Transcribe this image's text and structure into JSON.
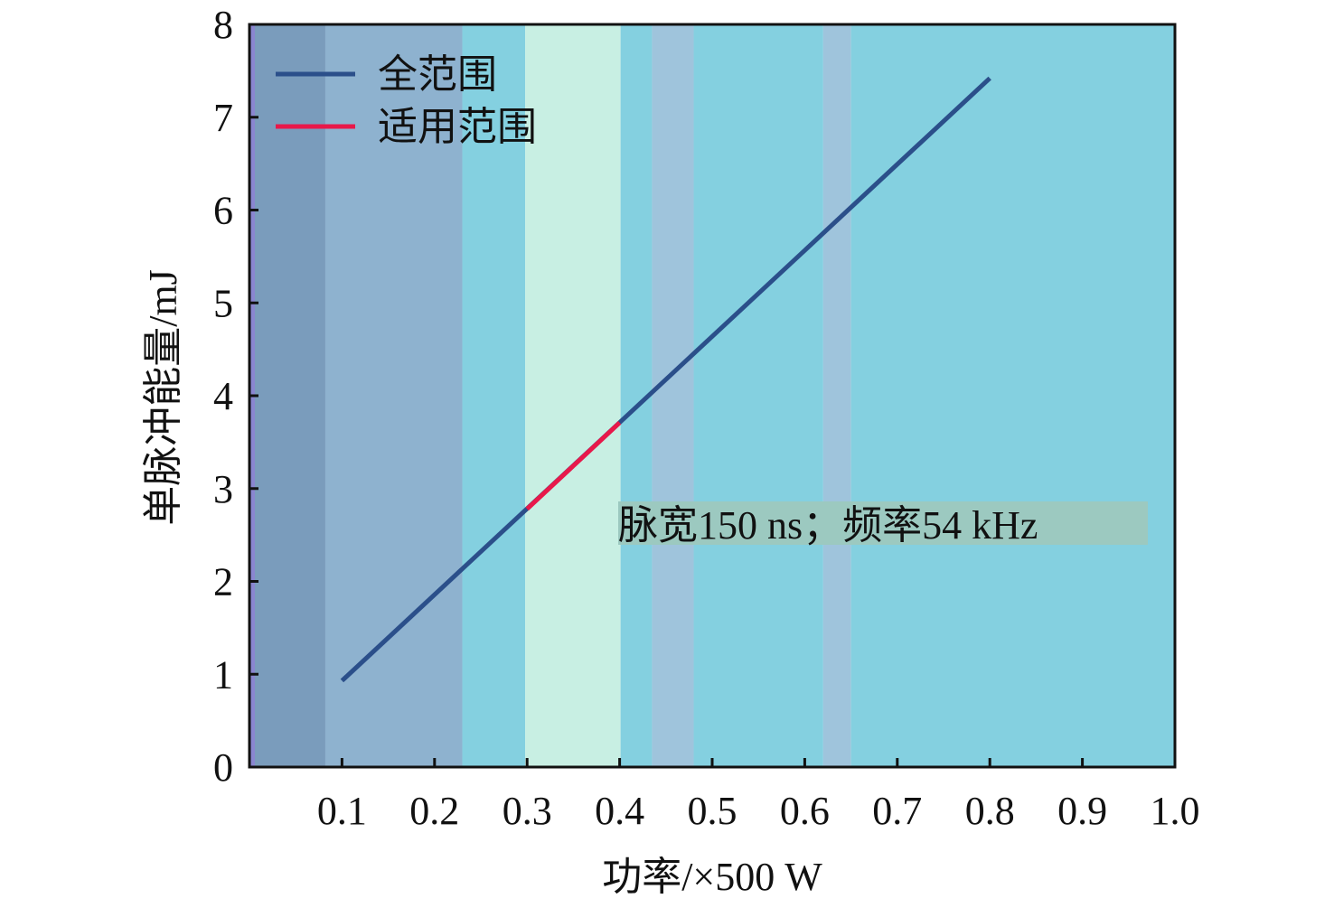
{
  "chart_data": {
    "type": "line",
    "xlabel": "功率/×500 W",
    "ylabel": "单脉冲能量/mJ",
    "xlim": [
      0,
      1.0
    ],
    "ylim": [
      0,
      8
    ],
    "xticks": [
      "0.1",
      "0.2",
      "0.3",
      "0.4",
      "0.5",
      "0.6",
      "0.7",
      "0.8",
      "0.9",
      "1.0"
    ],
    "yticks": [
      "0",
      "1",
      "2",
      "3",
      "4",
      "5",
      "6",
      "7",
      "8"
    ],
    "series": [
      {
        "name": "全范围",
        "color": "#2b4f8a",
        "x": [
          0.1,
          0.8
        ],
        "y": [
          0.93,
          7.42
        ]
      },
      {
        "name": "适用范围",
        "color": "#e8184a",
        "x": [
          0.3,
          0.4
        ],
        "y": [
          2.78,
          3.71
        ]
      }
    ],
    "annotation": "脉宽150 ns；频率54 kHz",
    "legend_position": "top-left",
    "grid": false,
    "background_colors": [
      "#7a9cbc",
      "#8eb2cf",
      "#84d0e0",
      "#c8efe3",
      "#9fc4dc"
    ]
  }
}
